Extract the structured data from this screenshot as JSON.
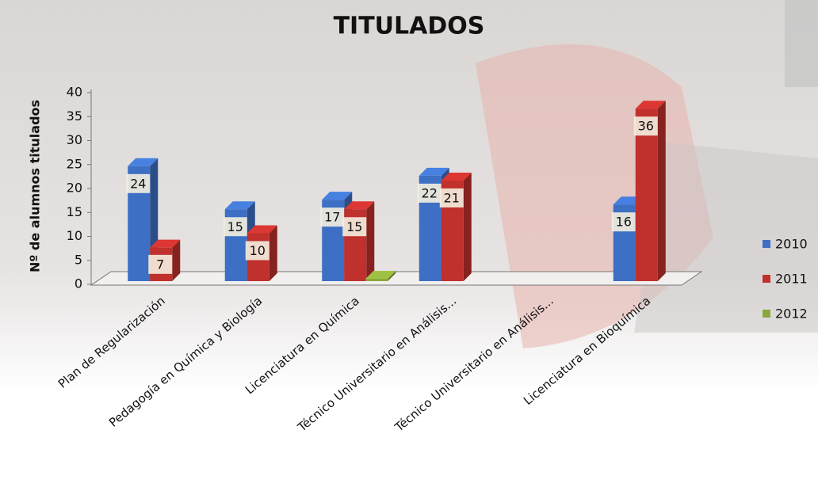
{
  "chart_data": {
    "type": "bar3d",
    "title": "TITULADOS",
    "y_label": "Nº de alumnos titulados",
    "categories": [
      "Plan de Regularización",
      "Pedagogía en Química y Biología",
      "Licenciatura en Química",
      "Técnico Universitario en Análisis...",
      "Técnico Universitario en Análisis...",
      "Licenciatura en Bioquímica"
    ],
    "series": [
      {
        "name": "2010",
        "color": "#3d6fc4",
        "values": [
          24,
          15,
          17,
          22,
          null,
          16
        ]
      },
      {
        "name": "2011",
        "color": "#c0302c",
        "values": [
          7,
          10,
          15,
          21,
          null,
          36
        ]
      },
      {
        "name": "2012",
        "color": "#8aa83a",
        "values": [
          null,
          null,
          0,
          null,
          null,
          null
        ]
      }
    ],
    "ylim": [
      0,
      40
    ],
    "yticks": [
      0,
      5,
      10,
      15,
      20,
      25,
      30,
      35,
      40
    ],
    "legend": "right"
  }
}
